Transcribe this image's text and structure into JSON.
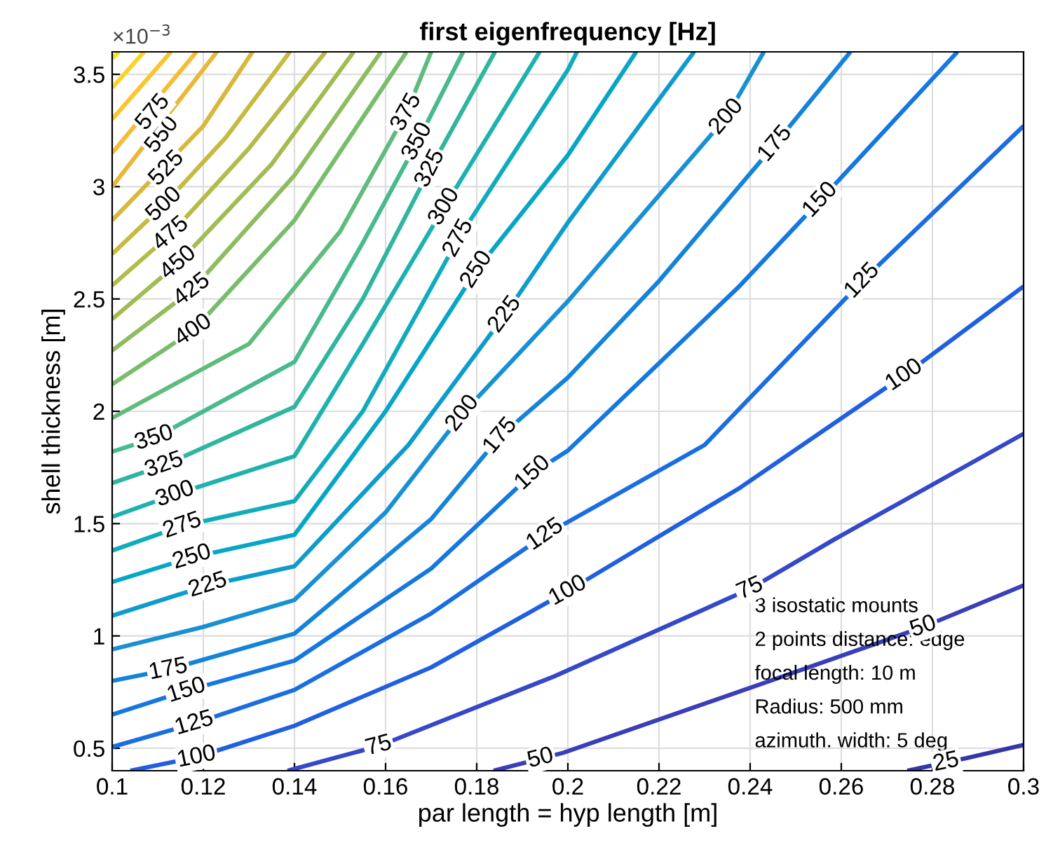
{
  "chart_data": {
    "type": "line",
    "title": "first eigenfrequency [Hz]",
    "xlabel": "par length = hyp length [m]",
    "ylabel": "shell thickness [m]",
    "xlim": [
      0.1,
      0.3
    ],
    "ylim": [
      0.4,
      3.6
    ],
    "xticks": [
      0.1,
      0.12,
      0.14,
      0.16,
      0.18,
      0.2,
      0.22,
      0.24,
      0.26,
      0.28,
      0.3
    ],
    "yticks": [
      0.5,
      1,
      1.5,
      2,
      2.5,
      3,
      3.5
    ],
    "grid": true,
    "line_style": "solid",
    "series": [
      {
        "color": "#3535a8",
        "x": [
          0.2745,
          0.2875,
          0.3
        ],
        "values": [
          0.4,
          0.456,
          0.515
        ]
      },
      {
        "color": "#3a3fb8",
        "x": [
          0.1837,
          0.199,
          0.243,
          0.278,
          0.3
        ],
        "values": [
          0.4,
          0.48,
          0.79,
          1.04,
          1.225
        ]
      },
      {
        "color": "#3448c8",
        "x": [
          0.1385,
          0.1585,
          0.197,
          0.24,
          0.2585,
          0.3
        ],
        "values": [
          0.4,
          0.51,
          0.82,
          1.21,
          1.43,
          1.9
        ]
      },
      {
        "color": "#2060e0",
        "x": [
          0.104,
          0.1185,
          0.14,
          0.17,
          0.2,
          0.2378,
          0.2738,
          0.3
        ],
        "values": [
          0.4,
          0.46,
          0.6,
          0.86,
          1.2,
          1.66,
          2.16,
          2.556
        ]
      },
      {
        "color": "#1a6ee0",
        "x": [
          0.1,
          0.118,
          0.14,
          0.17,
          0.195,
          0.23,
          0.2646,
          0.3
        ],
        "values": [
          0.506,
          0.61,
          0.76,
          1.1,
          1.45,
          1.85,
          2.58,
          3.27
        ]
      },
      {
        "color": "#1478e0",
        "x": [
          0.1,
          0.1163,
          0.14,
          0.17,
          0.1923,
          0.2,
          0.2378,
          0.2554,
          0.2855
        ],
        "values": [
          0.65,
          0.756,
          0.89,
          1.3,
          1.725,
          1.825,
          2.56,
          2.94,
          3.6
        ]
      },
      {
        "color": "#1484d8",
        "x": [
          0.1,
          0.1123,
          0.14,
          0.17,
          0.1852,
          0.2,
          0.22,
          0.2455,
          0.262
        ],
        "values": [
          0.8,
          0.85,
          1.01,
          1.52,
          1.89,
          2.15,
          2.58,
          3.19,
          3.6
        ]
      },
      {
        "color": "#1890d4",
        "x": [
          0.1,
          0.12,
          0.14,
          0.16,
          0.1769,
          0.2,
          0.2348,
          0.243
        ],
        "values": [
          0.94,
          1.04,
          1.16,
          1.55,
          1.99,
          2.49,
          3.31,
          3.6
        ]
      },
      {
        "color": "#0f9ccc",
        "x": [
          0.1,
          0.121,
          0.14,
          0.165,
          0.1862,
          0.2,
          0.2277
        ],
        "values": [
          1.09,
          1.225,
          1.31,
          1.85,
          2.43,
          2.84,
          3.6
        ]
      },
      {
        "color": "#08a6c6",
        "x": [
          0.1,
          0.1175,
          0.14,
          0.16,
          0.18,
          0.2,
          0.215
        ],
        "values": [
          1.24,
          1.35,
          1.45,
          2.0,
          2.63,
          3.14,
          3.6
        ]
      },
      {
        "color": "#10acbc",
        "x": [
          0.1,
          0.1154,
          0.14,
          0.155,
          0.176,
          0.2,
          0.202
        ],
        "values": [
          1.38,
          1.49,
          1.6,
          2.0,
          2.77,
          3.52,
          3.6
        ]
      },
      {
        "color": "#1eb2ae",
        "x": [
          0.1,
          0.1138,
          0.14,
          0.155,
          0.1729,
          0.1938
        ],
        "values": [
          1.53,
          1.63,
          1.8,
          2.3,
          2.91,
          3.6
        ]
      },
      {
        "color": "#30b69e",
        "x": [
          0.1,
          0.1114,
          0.14,
          0.155,
          0.1698,
          0.184
        ],
        "values": [
          1.68,
          1.76,
          2.02,
          2.5,
          3.08,
          3.6
        ]
      },
      {
        "color": "#48ba8c",
        "x": [
          0.1,
          0.1092,
          0.14,
          0.155,
          0.167,
          0.177
        ],
        "values": [
          1.82,
          1.88,
          2.22,
          2.75,
          3.2,
          3.6
        ]
      },
      {
        "color": "#60bc7c",
        "x": [
          0.1,
          0.13,
          0.15,
          0.1646,
          0.17
        ],
        "values": [
          1.97,
          2.3,
          2.8,
          3.33,
          3.6
        ]
      },
      {
        "color": "#78bc6c",
        "x": [
          0.1,
          0.1178,
          0.14,
          0.1646
        ],
        "values": [
          2.12,
          2.36,
          2.85,
          3.6
        ]
      },
      {
        "color": "#8ebc5e",
        "x": [
          0.1,
          0.1175,
          0.14,
          0.159
        ],
        "values": [
          2.27,
          2.54,
          3.05,
          3.6
        ]
      },
      {
        "color": "#a2bb52",
        "x": [
          0.1,
          0.1145,
          0.135,
          0.153
        ],
        "values": [
          2.41,
          2.66,
          3.1,
          3.6
        ]
      },
      {
        "color": "#b4bb48",
        "x": [
          0.1,
          0.1129,
          0.13,
          0.1468
        ],
        "values": [
          2.56,
          2.79,
          3.17,
          3.6
        ]
      },
      {
        "color": "#c6ba40",
        "x": [
          0.1,
          0.1114,
          0.125,
          0.139
        ],
        "values": [
          2.7,
          2.92,
          3.22,
          3.6
        ]
      },
      {
        "color": "#d8b83c",
        "x": [
          0.1,
          0.12,
          0.1308
        ],
        "values": [
          2.85,
          3.27,
          3.6
        ]
      },
      {
        "color": "#e8b83a",
        "x": [
          0.1,
          0.123
        ],
        "values": [
          3.0,
          3.6
        ]
      },
      {
        "color": "#f5bc36",
        "x": [
          0.1,
          0.1185
        ],
        "values": [
          3.15,
          3.6
        ]
      },
      {
        "color": "#fac630",
        "x": [
          0.1,
          0.1129
        ],
        "values": [
          3.3,
          3.6
        ]
      },
      {
        "color": "#f8d428",
        "x": [
          0.1,
          0.107
        ],
        "values": [
          3.44,
          3.6
        ]
      },
      {
        "color": "#f6e41e",
        "x": [
          0.1,
          0.1015
        ],
        "values": [
          3.57,
          3.6
        ]
      }
    ],
    "annotations": [
      "×10$^{−3}$",
      "3 isostatic mounts",
      "2 points distance: edge",
      "focal length: 10 m",
      "Radius: 500 mm",
      "azimuth. width: 5 deg",
      {
        "text": "25",
        "x": 0.283,
        "y": 0.437
      },
      {
        "text": "50",
        "x": 0.194,
        "y": 0.454
      },
      {
        "text": "50",
        "x": 0.278,
        "y": 1.04
      },
      {
        "text": "75",
        "x": 0.1585,
        "y": 0.51
      },
      {
        "text": "75",
        "x": 0.24,
        "y": 1.21
      },
      {
        "text": "100",
        "x": 0.1185,
        "y": 0.46
      },
      {
        "text": "100",
        "x": 0.2,
        "y": 1.2
      },
      {
        "text": "100",
        "x": 0.2738,
        "y": 2.16
      },
      {
        "text": "125",
        "x": 0.118,
        "y": 0.61
      },
      {
        "text": "125",
        "x": 0.195,
        "y": 1.45
      },
      {
        "text": "125",
        "x": 0.2646,
        "y": 2.58
      },
      {
        "text": "150",
        "x": 0.1163,
        "y": 0.756
      },
      {
        "text": "150",
        "x": 0.1923,
        "y": 1.725
      },
      {
        "text": "150",
        "x": 0.2554,
        "y": 2.94
      },
      {
        "text": "175",
        "x": 0.1123,
        "y": 0.85
      },
      {
        "text": "175",
        "x": 0.1852,
        "y": 1.89
      },
      {
        "text": "175",
        "x": 0.2455,
        "y": 3.19
      },
      {
        "text": "200",
        "x": 0.1769,
        "y": 1.99
      },
      {
        "text": "200",
        "x": 0.2348,
        "y": 3.31
      },
      {
        "text": "225",
        "x": 0.121,
        "y": 1.225
      },
      {
        "text": "225",
        "x": 0.1862,
        "y": 2.43
      },
      {
        "text": "250",
        "x": 0.1175,
        "y": 1.35
      },
      {
        "text": "250",
        "x": 0.18,
        "y": 2.63
      },
      {
        "text": "275",
        "x": 0.1154,
        "y": 1.49
      },
      {
        "text": "275",
        "x": 0.176,
        "y": 2.77
      },
      {
        "text": "300",
        "x": 0.1138,
        "y": 1.63
      },
      {
        "text": "300",
        "x": 0.1729,
        "y": 2.91
      },
      {
        "text": "325",
        "x": 0.1114,
        "y": 1.76
      },
      {
        "text": "325",
        "x": 0.1698,
        "y": 3.08
      },
      {
        "text": "350",
        "x": 0.1092,
        "y": 1.88
      },
      {
        "text": "350",
        "x": 0.167,
        "y": 3.2
      },
      {
        "text": "375",
        "x": 0.1646,
        "y": 3.33
      },
      {
        "text": "400",
        "x": 0.1178,
        "y": 2.36
      },
      {
        "text": "425",
        "x": 0.1175,
        "y": 2.54
      },
      {
        "text": "450",
        "x": 0.1145,
        "y": 2.66
      },
      {
        "text": "475",
        "x": 0.1129,
        "y": 2.79
      },
      {
        "text": "500",
        "x": 0.1114,
        "y": 2.92
      },
      {
        "text": "525",
        "x": 0.112,
        "y": 3.08
      },
      {
        "text": "550",
        "x": 0.111,
        "y": 3.23
      },
      {
        "text": "575",
        "x": 0.109,
        "y": 3.33
      }
    ]
  }
}
